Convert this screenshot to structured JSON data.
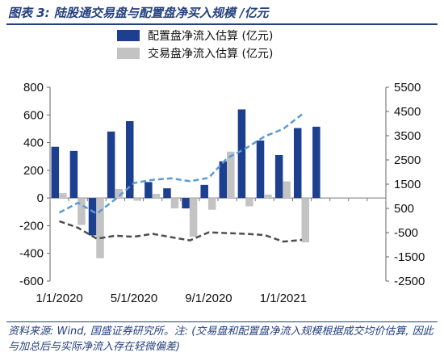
{
  "figure": {
    "title": "图表 3:  陆股通交易盘与配置盘净买入规模 /亿元",
    "source_note": "资料来源: Wind, 国盛证券研究所。注: (交易盘和配置盘净流入规模根据成交均价估算, 因此与加总后与实际净流入存在轻微偏差)"
  },
  "chart_data": {
    "type": "bar",
    "categories": [
      "2020-01",
      "2020-02",
      "2020-03",
      "2020-04",
      "2020-05",
      "2020-06",
      "2020-07",
      "2020-08",
      "2020-09",
      "2020-10",
      "2020-11",
      "2020-12",
      "2021-01",
      "2021-02",
      "2021-03",
      "2021-04",
      "2021-05",
      "2021-06"
    ],
    "x_tick_labels": [
      {
        "label": "1/1/2020",
        "category_index": 0
      },
      {
        "label": "5/1/2020",
        "category_index": 4
      },
      {
        "label": "9/1/2020",
        "category_index": 8
      },
      {
        "label": "1/1/2021",
        "category_index": 12
      }
    ],
    "series": [
      {
        "name": "配置盘净流入估算 (亿元)",
        "kind": "bar",
        "axis": "left",
        "color": "#1d3f8f",
        "values": [
          370,
          340,
          -270,
          480,
          555,
          115,
          70,
          -75,
          95,
          265,
          640,
          415,
          310,
          505,
          515,
          0,
          0,
          0
        ]
      },
      {
        "name": "交易盘净流入估算 (亿元)",
        "kind": "bar",
        "axis": "left",
        "color": "#c3c3c3",
        "values": [
          35,
          -195,
          -435,
          65,
          -20,
          30,
          -75,
          -280,
          -85,
          335,
          -60,
          25,
          120,
          -320,
          0,
          0,
          0,
          0
        ]
      },
      {
        "kind": "line",
        "axis": "right",
        "color": "#5b9bd5",
        "dash": "dashed",
        "values": [
          325,
          730,
          280,
          880,
          1550,
          1680,
          1740,
          1620,
          1760,
          2580,
          2980,
          3470,
          3780,
          4380,
          0,
          0,
          0,
          0
        ]
      },
      {
        "kind": "line",
        "axis": "right",
        "color": "#4d4d4d",
        "dash": "dashed",
        "values": [
          -30,
          -300,
          -750,
          -630,
          -670,
          -550,
          -690,
          -820,
          -490,
          -520,
          -550,
          -600,
          -870,
          -800,
          0,
          0,
          0,
          0
        ]
      }
    ],
    "y_left": {
      "min": -600,
      "max": 800,
      "step": 200,
      "ticks": [
        "-600",
        "-400",
        "-200",
        "0",
        "200",
        "400",
        "600",
        "800"
      ]
    },
    "y_right": {
      "min": -2500,
      "max": 5500,
      "step": 1000,
      "ticks": [
        "-2500",
        "-1500",
        "-500",
        "500",
        "1500",
        "2500",
        "3500",
        "4500",
        "5500"
      ]
    },
    "legend_position": "top-right",
    "grid": false
  }
}
